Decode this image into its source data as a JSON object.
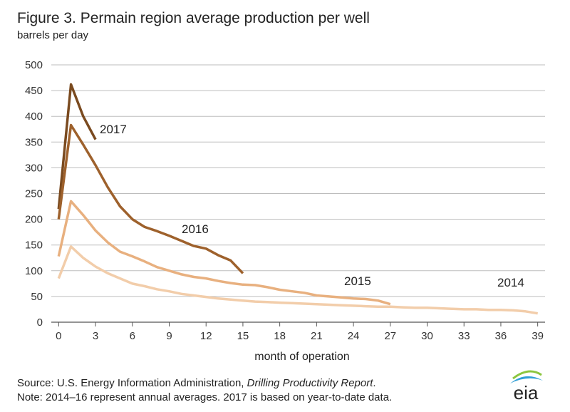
{
  "chart_data": {
    "type": "line",
    "title": "Figure 3. Permain region average production per well",
    "subtitle": "barrels per day",
    "x_label": "month of operation",
    "xlim": [
      -0.6,
      39.6
    ],
    "xticks": [
      0,
      3,
      6,
      9,
      12,
      15,
      18,
      21,
      24,
      27,
      30,
      33,
      36,
      39
    ],
    "ylim": [
      0,
      500
    ],
    "yticks": [
      0,
      50,
      100,
      150,
      200,
      250,
      300,
      350,
      400,
      450,
      500
    ],
    "grid": true,
    "series": [
      {
        "name": "2017",
        "color": "#7a4a1f",
        "x": [
          0,
          1,
          2,
          3
        ],
        "values": [
          220,
          462,
          400,
          355
        ]
      },
      {
        "name": "2016",
        "color": "#9e612c",
        "x": [
          0,
          1,
          2,
          3,
          4,
          5,
          6,
          7,
          8,
          9,
          10,
          11,
          12,
          13,
          14,
          15
        ],
        "values": [
          200,
          383,
          345,
          305,
          262,
          225,
          200,
          185,
          177,
          168,
          158,
          148,
          143,
          130,
          120,
          95
        ]
      },
      {
        "name": "2015",
        "color": "#e8b07f",
        "x": [
          0,
          1,
          2,
          3,
          4,
          5,
          6,
          7,
          8,
          9,
          10,
          11,
          12,
          13,
          14,
          15,
          16,
          17,
          18,
          19,
          20,
          21,
          22,
          23,
          24,
          25,
          26,
          27
        ],
        "values": [
          128,
          235,
          208,
          178,
          155,
          137,
          128,
          118,
          107,
          100,
          93,
          88,
          85,
          80,
          76,
          73,
          72,
          68,
          63,
          60,
          57,
          52,
          50,
          48,
          46,
          45,
          42,
          35
        ]
      },
      {
        "name": "2014",
        "color": "#f2cdaa",
        "x": [
          0,
          1,
          2,
          3,
          4,
          5,
          6,
          7,
          8,
          9,
          10,
          11,
          12,
          13,
          14,
          15,
          16,
          17,
          18,
          19,
          20,
          21,
          22,
          23,
          24,
          25,
          26,
          27,
          28,
          29,
          30,
          31,
          32,
          33,
          34,
          35,
          36,
          37,
          38,
          39
        ],
        "values": [
          85,
          147,
          125,
          108,
          95,
          85,
          75,
          70,
          64,
          60,
          55,
          52,
          49,
          46,
          44,
          42,
          40,
          39,
          38,
          37,
          36,
          35,
          34,
          33,
          32,
          31,
          30,
          30,
          29,
          28,
          28,
          27,
          26,
          25,
          25,
          24,
          24,
          23,
          21,
          17
        ]
      }
    ],
    "source_prefix": "Source: U.S. Energy Information Administration, ",
    "source_italic": "Drilling Productivity Report",
    "source_suffix": ".",
    "note": "Note: 2014–16 represent annual averages. 2017 is based on year-to-date data.",
    "logo": "eia"
  }
}
